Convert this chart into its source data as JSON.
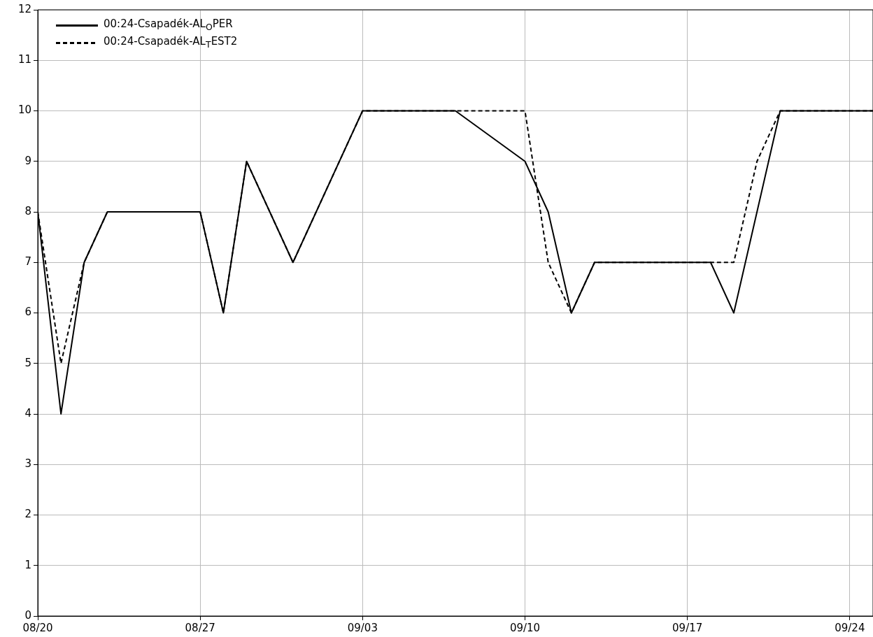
{
  "chart_data": {
    "type": "line",
    "x": [
      "--08-20",
      "--08-21",
      "--08-22",
      "--08-23",
      "--08-27",
      "--08-28",
      "--08-29",
      "--08-31",
      "--09-03",
      "--09-07",
      "--09-10",
      "--09-11",
      "--09-12",
      "--09-13",
      "--09-18",
      "--09-19",
      "--09-21",
      "--09-25"
    ],
    "series": [
      {
        "name": "00:24-Csapadék-AL$_{O}$PER",
        "color": "#000000",
        "line_style": "solid",
        "values": [
          8,
          4,
          7,
          8,
          8,
          6,
          9,
          7,
          10,
          10,
          9,
          8,
          6,
          7,
          7,
          6,
          10,
          10
        ]
      },
      {
        "name": "00:24-Csapadék-AL$_{T}$EST2",
        "color": "#000000",
        "line_style": "dashed",
        "x": [
          "--08-20",
          "--08-21",
          "--08-22",
          "--08-23",
          "--08-27",
          "--08-28",
          "--08-29",
          "--08-31",
          "--09-03",
          "--09-10",
          "--09-11",
          "--09-12",
          "--09-13",
          "--09-19",
          "--09-20",
          "--09-21",
          "--09-25"
        ],
        "values": [
          8,
          5,
          7,
          8,
          8,
          6,
          9,
          7,
          10,
          10,
          7,
          6,
          7,
          7,
          9,
          10,
          10
        ]
      }
    ],
    "xlim": [
      "--08-20",
      "--09-25"
    ],
    "xticks": [
      {
        "value": "--08-20",
        "label": "08/20"
      },
      {
        "value": "--08-27",
        "label": "08/27"
      },
      {
        "value": "--09-03",
        "label": "09/03"
      },
      {
        "value": "--09-10",
        "label": "09/10"
      },
      {
        "value": "--09-17",
        "label": "09/17"
      },
      {
        "value": "--09-24",
        "label": "09/24"
      }
    ],
    "ylim": [
      0,
      12
    ],
    "yticks": [
      0,
      1,
      2,
      3,
      4,
      5,
      6,
      7,
      8,
      9,
      10,
      11,
      12
    ],
    "grid": true,
    "legend": "top left",
    "marker": "none"
  }
}
